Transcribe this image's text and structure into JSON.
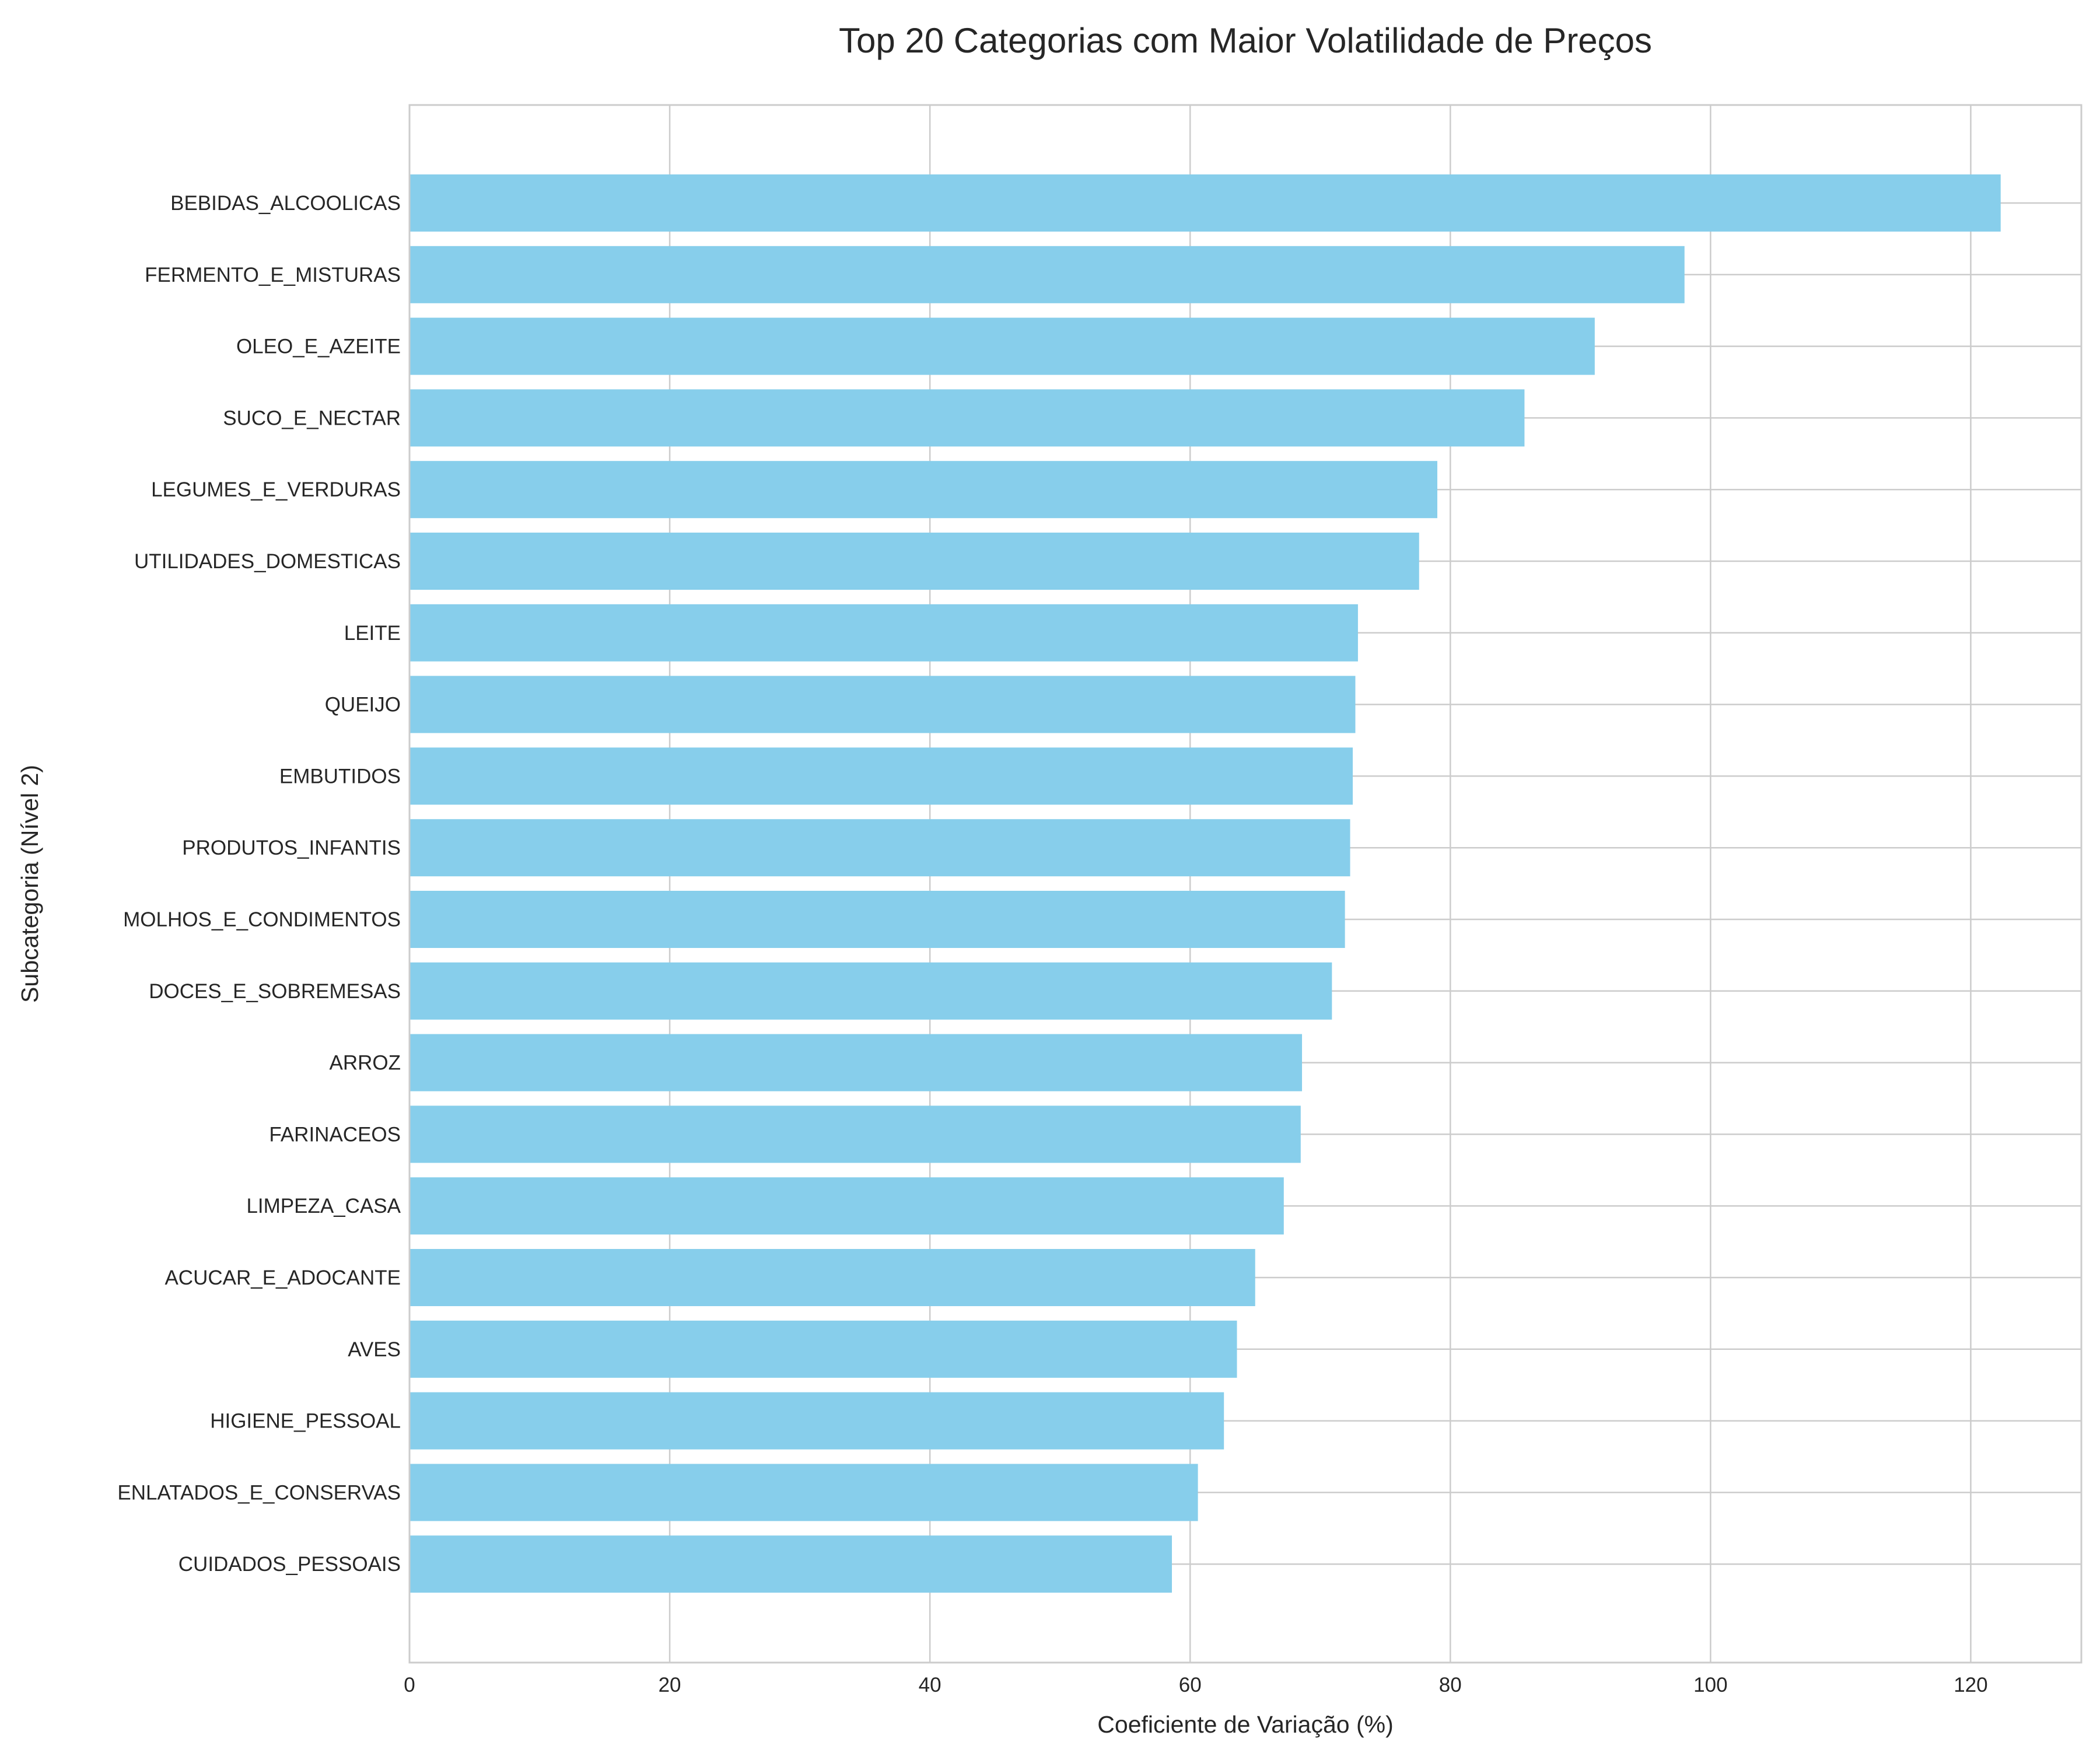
{
  "chart_data": {
    "type": "bar",
    "orientation": "horizontal",
    "title": "Top 20 Categorias com Maior Volatilidade de Preços",
    "xlabel": "Coeficiente de Variação (%)",
    "ylabel": "Subcategoria (Nível 2)",
    "xlim": [
      0,
      128.5
    ],
    "xticks": [
      "0",
      "20",
      "40",
      "60",
      "80",
      "100",
      "120"
    ],
    "grid": true,
    "bar_color": "#87CEEB",
    "categories": [
      "BEBIDAS_ALCOOLICAS",
      "FERMENTO_E_MISTURAS",
      "OLEO_E_AZEITE",
      "SUCO_E_NECTAR",
      "LEGUMES_E_VERDURAS",
      "UTILIDADES_DOMESTICAS",
      "LEITE",
      "QUEIJO",
      "EMBUTIDOS",
      "PRODUTOS_INFANTIS",
      "MOLHOS_E_CONDIMENTOS",
      "DOCES_E_SOBREMESAS",
      "ARROZ",
      "FARINACEOS",
      "LIMPEZA_CASA",
      "ACUCAR_E_ADOCANTE",
      "AVES",
      "HIGIENE_PESSOAL",
      "ENLATADOS_E_CONSERVAS",
      "CUIDADOS_PESSOAIS"
    ],
    "values": [
      122.3,
      98.0,
      91.1,
      85.7,
      79.0,
      77.6,
      72.9,
      72.7,
      72.5,
      72.3,
      71.9,
      70.9,
      68.6,
      68.5,
      67.2,
      65.0,
      63.6,
      62.6,
      60.6,
      58.6
    ]
  }
}
